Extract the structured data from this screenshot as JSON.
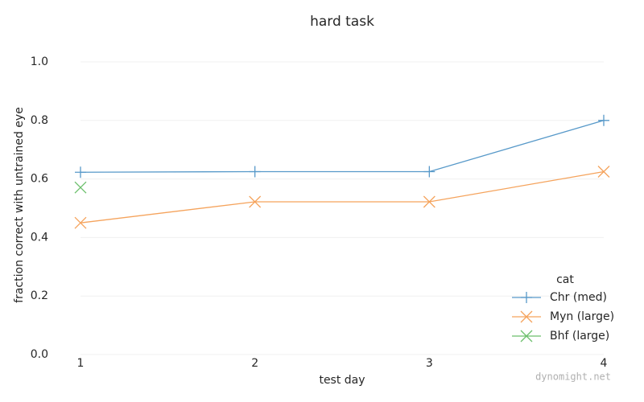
{
  "chart_data": {
    "type": "line",
    "title": "hard task",
    "x_label": "test day",
    "y_label": "fraction correct with untrained eye",
    "x": [
      1,
      2,
      3,
      4
    ],
    "series": [
      {
        "name": "Chr (med)",
        "color": "#5799c9",
        "marker": "+",
        "values": [
          0.623,
          0.625,
          0.625,
          0.8
        ]
      },
      {
        "name": "Myn (large)",
        "color": "#f5a35c",
        "marker": "x",
        "values": [
          0.45,
          0.522,
          0.522,
          0.625
        ]
      },
      {
        "name": "Bhf (large)",
        "color": "#6cbf6c",
        "marker": "x",
        "values": [
          0.571,
          null,
          null,
          null
        ]
      }
    ],
    "xlim": [
      1,
      4
    ],
    "xticks": [
      1,
      2,
      3,
      4
    ],
    "ylim": [
      0,
      1
    ],
    "yticks": [
      {
        "value": 0,
        "label": "0.0"
      },
      0.2,
      0.4,
      0.6,
      0.8,
      {
        "value": 1,
        "label": "1.0"
      }
    ],
    "grid": true,
    "legend": "lower right",
    "legend_title": "cat",
    "watermark": "dynomight.net"
  }
}
